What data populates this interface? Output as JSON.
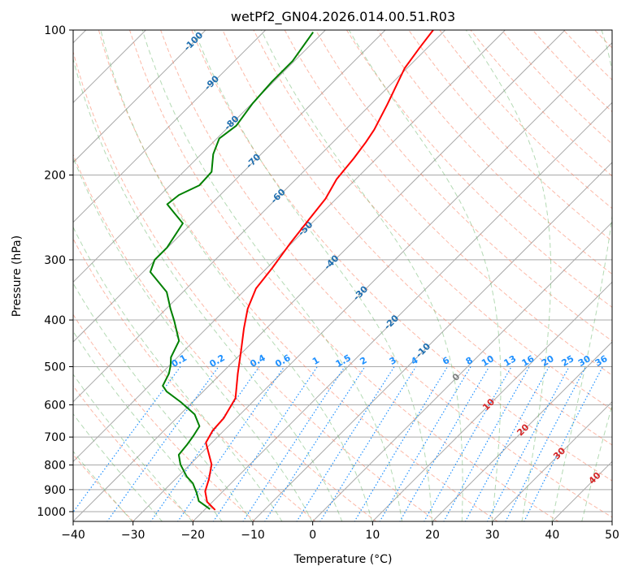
{
  "chart_data": {
    "type": "line",
    "subtype": "skew-t log-p",
    "title": "wetPf2_GN04.2026.014.00.51.R03",
    "xlabel": "Temperature (°C)",
    "ylabel": "Pressure (hPa)",
    "xlim": [
      -40,
      50
    ],
    "ylim": [
      1050,
      100
    ],
    "x_ticks": [
      "−40",
      "−30",
      "−20",
      "−10",
      "0",
      "10",
      "20",
      "30",
      "40",
      "50"
    ],
    "x_tick_values": [
      -40,
      -30,
      -20,
      -10,
      0,
      10,
      20,
      30,
      40,
      50
    ],
    "y_ticks": [
      "100",
      "200",
      "300",
      "400",
      "500",
      "600",
      "700",
      "800",
      "900",
      "1000"
    ],
    "y_tick_values": [
      100,
      200,
      300,
      400,
      500,
      600,
      700,
      800,
      900,
      1000
    ],
    "grid": true,
    "series": [
      {
        "name": "temperature",
        "color": "#ff0000",
        "p": [
          992,
          954,
          907,
          856,
          798,
          719,
          678,
          640,
          581,
          517,
          460,
          417,
          379,
          344,
          312,
          278,
          247,
          224,
          204,
          185,
          171,
          161,
          143,
          120,
          109,
          100
        ],
        "T": [
          -18.2,
          -20.9,
          -23.0,
          -24.4,
          -26.4,
          -31.0,
          -31.9,
          -32.1,
          -33.5,
          -37.2,
          -40.7,
          -43.7,
          -46.4,
          -48.4,
          -49.1,
          -50.2,
          -51.1,
          -51.8,
          -53.2,
          -53.8,
          -54.5,
          -55.2,
          -57.2,
          -60.4,
          -61.3,
          -62.0
        ]
      },
      {
        "name": "dewpoint",
        "color": "#008000",
        "p": [
          988,
          951,
          915,
          873,
          846,
          798,
          762,
          727,
          697,
          665,
          628,
          592,
          563,
          548,
          517,
          497,
          478,
          442,
          402,
          379,
          350,
          318,
          300,
          283,
          267,
          252,
          240,
          230,
          220,
          210,
          197,
          181,
          168,
          158,
          142,
          128,
          116,
          101
        ],
        "T": [
          -19.2,
          -22.4,
          -24.1,
          -26.4,
          -28.5,
          -31.6,
          -33.5,
          -33.8,
          -34.2,
          -34.8,
          -37.6,
          -42.0,
          -46.1,
          -47.7,
          -48.7,
          -49.8,
          -51.1,
          -52.5,
          -56.6,
          -59.3,
          -62.7,
          -68.8,
          -70.1,
          -70.1,
          -70.8,
          -71.5,
          -74.6,
          -77.3,
          -76.9,
          -75.1,
          -75.3,
          -78.0,
          -79.6,
          -78.9,
          -79.9,
          -80.3,
          -80.3,
          -81.7
        ]
      }
    ],
    "mixing_ratio_labels": [
      "0.1",
      "0.2",
      "0.4",
      "0.6",
      "1",
      "1.5",
      "2",
      "3",
      "4",
      "6",
      "8",
      "10",
      "13",
      "16",
      "20",
      "25",
      "30",
      "36"
    ],
    "mixing_ratio_values": [
      0.1,
      0.2,
      0.4,
      0.6,
      1,
      1.5,
      2,
      3,
      4,
      6,
      8,
      10,
      13,
      16,
      20,
      25,
      30,
      36
    ],
    "isotherm_labels": [
      {
        "text": "-100",
        "T": -100,
        "p": 105
      },
      {
        "text": "-90",
        "T": -90,
        "p": 128
      },
      {
        "text": "-80",
        "T": -80,
        "p": 155
      },
      {
        "text": "-70",
        "T": -70,
        "p": 186
      },
      {
        "text": "-60",
        "T": -60,
        "p": 220
      },
      {
        "text": "-50",
        "T": -50,
        "p": 257
      },
      {
        "text": "-40",
        "T": -40,
        "p": 302
      },
      {
        "text": "-30",
        "T": -30,
        "p": 350
      },
      {
        "text": "-20",
        "T": -20,
        "p": 402
      },
      {
        "text": "-10",
        "T": -10,
        "p": 460
      },
      {
        "text": "0",
        "T": 0,
        "p": 523
      },
      {
        "text": "10",
        "T": 10,
        "p": 596
      },
      {
        "text": "20",
        "T": 20,
        "p": 673
      },
      {
        "text": "30",
        "T": 30,
        "p": 753
      },
      {
        "text": "40",
        "T": 40,
        "p": 847
      }
    ],
    "colors": {
      "negative_label": "#1f6fb0",
      "zero_label": "#808080",
      "positive_label": "#d62728",
      "mixing": "#1e90ff",
      "dry": "#fa8060",
      "moist": "#6ab56a",
      "grid": "#a9a9a9"
    }
  }
}
